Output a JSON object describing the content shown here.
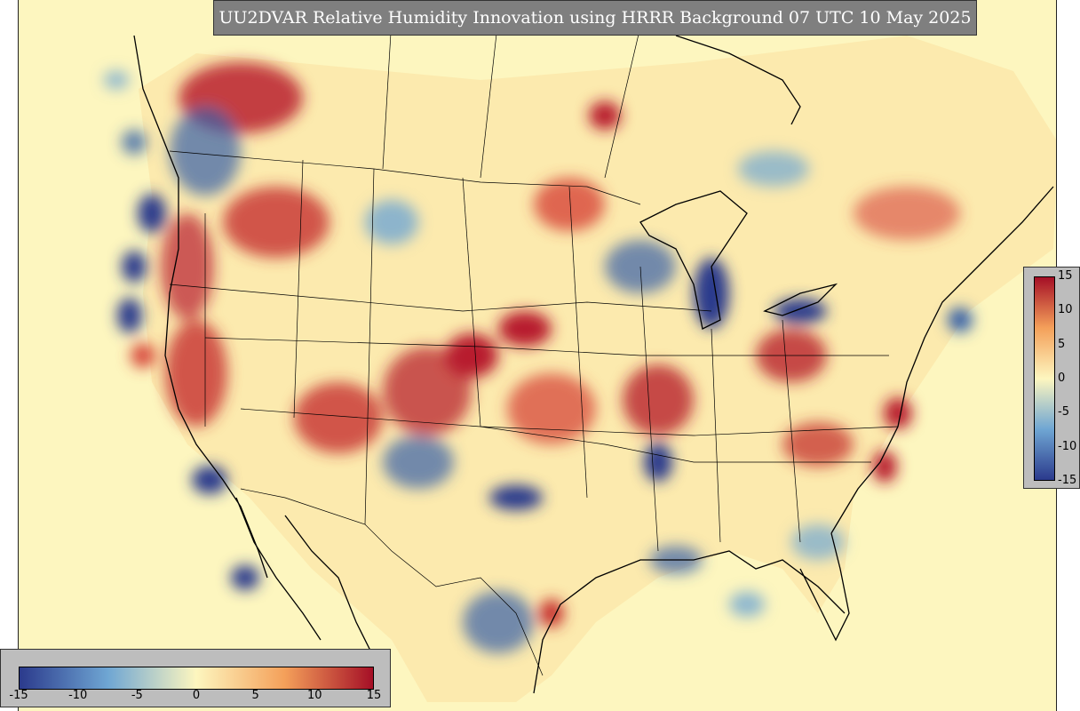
{
  "title": "UU2DVAR Relative Humidity Innovation using HRRR Background 07 UTC 10 May 2025",
  "colorbar": {
    "ticks_horizontal": [
      "-15",
      "-10",
      "-5",
      "0",
      "5",
      "10",
      "15"
    ],
    "ticks_vertical": [
      "15",
      "10",
      "5",
      "0",
      "-5",
      "-10",
      "-15"
    ],
    "min": -15,
    "max": 15,
    "colors": {
      "neg_max": "#2b3a8c",
      "neg_mid": "#6fa6d3",
      "neutral": "#fdf6bf",
      "pos_mid": "#f4a05a",
      "pos_max": "#a50f26"
    }
  },
  "map": {
    "background_color": "#fdf6bf",
    "boundary_color": "#000000"
  }
}
